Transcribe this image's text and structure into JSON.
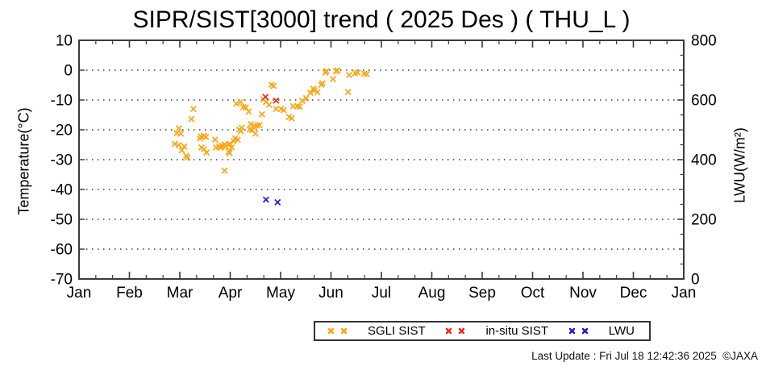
{
  "page": {
    "title": "SIPR/SIST[3000] trend ( 2025 Des ) ( THU_L )",
    "footer": "Last Update : Fri Jul 18 12:42:36 2025  ©JAXA"
  },
  "chart_data": {
    "type": "scatter",
    "title": "SIPR/SIST[3000] trend ( 2025 Des ) ( THU_L )",
    "marker": "x",
    "grid": "horizontal dotted lines at left-axis major ticks",
    "legend_position": "bottom-center boxed",
    "x_axis": {
      "label": "",
      "tick_labels": [
        "Jan",
        "Feb",
        "Mar",
        "Apr",
        "May",
        "Jun",
        "Jul",
        "Aug",
        "Sep",
        "Oct",
        "Nov",
        "Dec",
        "Jan"
      ],
      "range_months": [
        1,
        13
      ],
      "minor_ticks_per_month": 3
    },
    "y_left": {
      "label": "Temperature(°C)",
      "range": [
        -70,
        10
      ],
      "tick_step": 10,
      "tick_labels": [
        "10",
        "0",
        "-10",
        "-20",
        "-30",
        "-40",
        "-50",
        "-60",
        "-70"
      ]
    },
    "y_right": {
      "label": "LWU(W/m²)",
      "range": [
        0,
        800
      ],
      "tick_step_major": 200,
      "tick_step_minor": 50,
      "tick_labels": [
        "800",
        "600",
        "400",
        "200",
        "0"
      ]
    },
    "series": [
      {
        "name": "SGLI SIST",
        "color": "#ffa513",
        "axis": "left",
        "points": [
          [
            2.9,
            -24.7
          ],
          [
            2.94,
            -21.1
          ],
          [
            2.98,
            -19.5
          ],
          [
            2.98,
            -25.1
          ],
          [
            3.02,
            -21.3
          ],
          [
            3.04,
            -26.9
          ],
          [
            3.09,
            -25.6
          ],
          [
            3.13,
            -28.7
          ],
          [
            3.15,
            -29.3
          ],
          [
            3.23,
            -16.4
          ],
          [
            3.27,
            -13.0
          ],
          [
            3.4,
            -22.9
          ],
          [
            3.42,
            -22.2
          ],
          [
            3.43,
            -25.9
          ],
          [
            3.48,
            -22.0
          ],
          [
            3.48,
            -26.5
          ],
          [
            3.52,
            -22.4
          ],
          [
            3.53,
            -27.6
          ],
          [
            3.7,
            -23.3
          ],
          [
            3.72,
            -25.9
          ],
          [
            3.78,
            -25.6
          ],
          [
            3.81,
            -26.0
          ],
          [
            3.83,
            -25.3
          ],
          [
            3.89,
            -24.9
          ],
          [
            3.89,
            -33.7
          ],
          [
            3.91,
            -25.6
          ],
          [
            3.97,
            -25.1
          ],
          [
            3.97,
            -27.4
          ],
          [
            3.99,
            -24.7
          ],
          [
            3.99,
            -27.8
          ],
          [
            4.03,
            -25.9
          ],
          [
            4.07,
            -23.8
          ],
          [
            4.1,
            -22.9
          ],
          [
            4.12,
            -11.2
          ],
          [
            4.15,
            -23.3
          ],
          [
            4.18,
            -19.9
          ],
          [
            4.21,
            -10.7
          ],
          [
            4.21,
            -20.5
          ],
          [
            4.23,
            -19.3
          ],
          [
            4.26,
            -12.4
          ],
          [
            4.31,
            -12.5
          ],
          [
            4.37,
            -13.9
          ],
          [
            4.39,
            -19.9
          ],
          [
            4.41,
            -18.1
          ],
          [
            4.44,
            -20.1
          ],
          [
            4.47,
            -18.8
          ],
          [
            4.5,
            -21.3
          ],
          [
            4.53,
            -18.6
          ],
          [
            4.58,
            -18.4
          ],
          [
            4.63,
            -14.8
          ],
          [
            4.66,
            -9.8
          ],
          [
            4.71,
            -10.7
          ],
          [
            4.77,
            -11.6
          ],
          [
            4.82,
            -4.9
          ],
          [
            4.86,
            -5.3
          ],
          [
            4.91,
            -13.0
          ],
          [
            5.01,
            -13.0
          ],
          [
            5.06,
            -13.4
          ],
          [
            5.17,
            -15.7
          ],
          [
            5.22,
            -16.1
          ],
          [
            5.25,
            -12.1
          ],
          [
            5.33,
            -12.1
          ],
          [
            5.38,
            -12.2
          ],
          [
            5.43,
            -10.3
          ],
          [
            5.51,
            -9.4
          ],
          [
            5.59,
            -7.6
          ],
          [
            5.65,
            -6.2
          ],
          [
            5.67,
            -6.8
          ],
          [
            5.73,
            -7.4
          ],
          [
            5.81,
            -4.9
          ],
          [
            5.83,
            -4.4
          ],
          [
            5.89,
            -0.8
          ],
          [
            5.91,
            -0.3
          ],
          [
            6.04,
            -3.0
          ],
          [
            6.1,
            -0.4
          ],
          [
            6.13,
            -0.1
          ],
          [
            6.34,
            -7.3
          ],
          [
            6.36,
            -1.6
          ],
          [
            6.48,
            -1.0
          ],
          [
            6.53,
            -0.8
          ],
          [
            6.66,
            -1.2
          ],
          [
            6.71,
            -1.3
          ]
        ]
      },
      {
        "name": "in-situ SIST",
        "color": "#ff2414",
        "axis": "left",
        "points": [
          [
            4.7,
            -9.0
          ],
          [
            4.91,
            -10.2
          ]
        ]
      },
      {
        "name": "LWU",
        "color": "#1a1ae6",
        "axis": "right",
        "points": [
          [
            4.71,
            266
          ],
          [
            4.94,
            257
          ]
        ]
      }
    ]
  },
  "colors": {
    "frame": "#3a3a3a",
    "grid": "#151515",
    "text": "#000000"
  }
}
